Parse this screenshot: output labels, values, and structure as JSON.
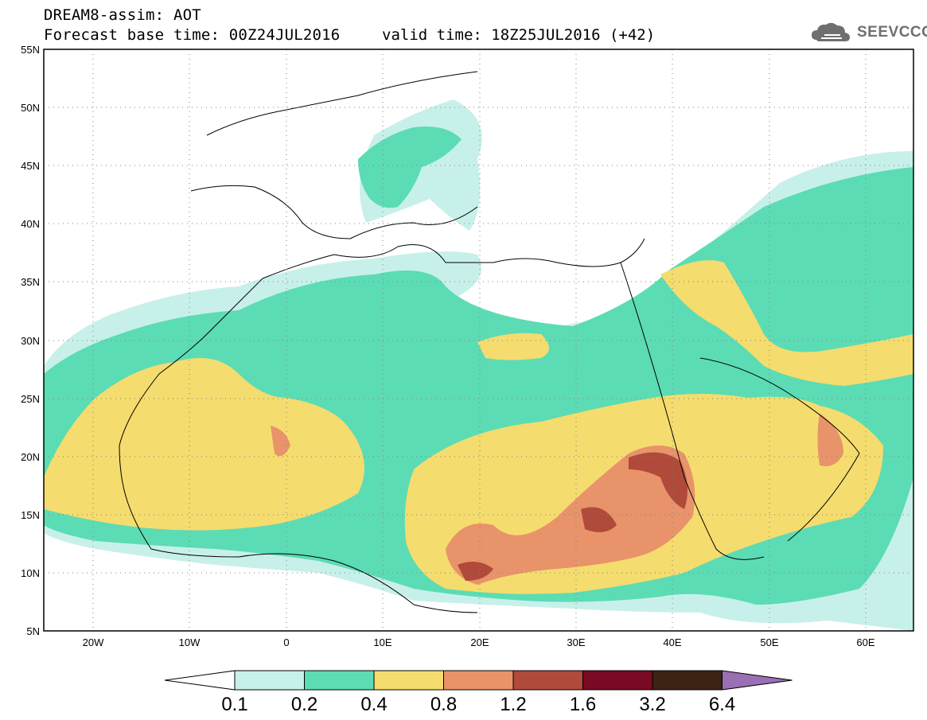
{
  "header": {
    "line1": "DREAM8-assim: AOT",
    "line2": "Forecast base time: 00Z24JUL2016",
    "valid": "valid time: 18Z25JUL2016 (+42)",
    "logo_text": "SEEVCCC"
  },
  "map": {
    "lat_labels": [
      "55N",
      "50N",
      "45N",
      "40N",
      "35N",
      "30N",
      "25N",
      "20N",
      "15N",
      "10N",
      "5N"
    ],
    "lon_labels": [
      "20W",
      "10W",
      "0",
      "10E",
      "20E",
      "30E",
      "40E",
      "50E",
      "60E"
    ],
    "extent": {
      "lon_min": -25,
      "lon_max": 65,
      "lat_min": 5,
      "lat_max": 55
    }
  },
  "legend": {
    "values": [
      "0.1",
      "0.2",
      "0.4",
      "0.8",
      "1.2",
      "1.6",
      "3.2",
      "6.4"
    ],
    "colors": [
      "#ffffff",
      "#c8f0ea",
      "#5cdcb4",
      "#f5dc6e",
      "#e8936a",
      "#b04a3a",
      "#7a0a23",
      "#3c2314",
      "#9a6fb4"
    ]
  },
  "colors": {
    "land_lines": "#000000",
    "grid": "#808080"
  }
}
